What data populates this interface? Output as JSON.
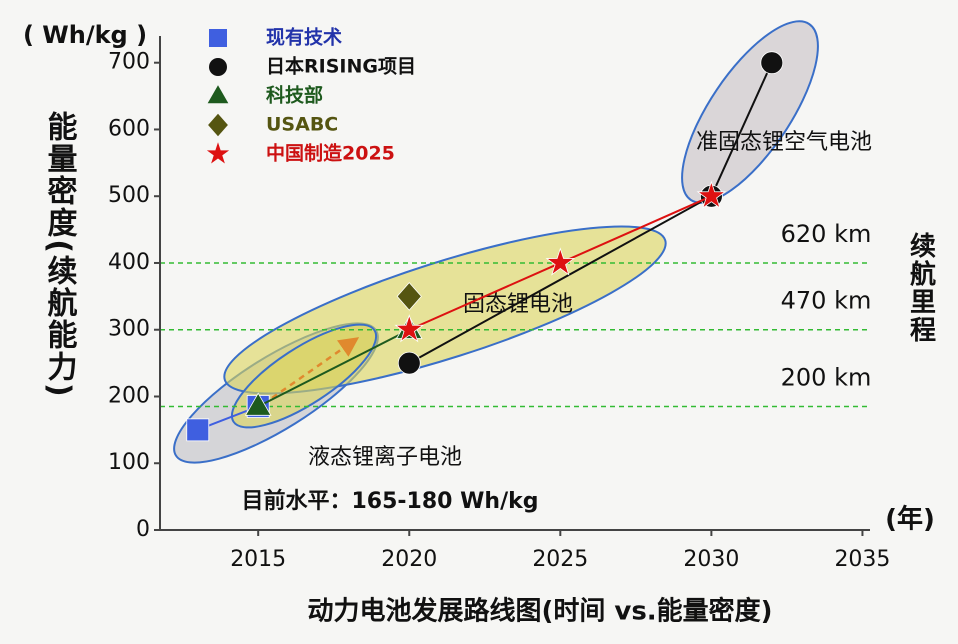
{
  "chart_data": {
    "type": "line",
    "title": "动力电池发展路线图(时间 vs.能量密度)",
    "y_label": "能量密度(续航能力)",
    "y_unit": "( Wh/kg )",
    "x_unit": "(年)",
    "y2_label": "续航里程",
    "xlim": [
      2011.75,
      2035.25
    ],
    "xticks": [
      2015,
      2020,
      2025,
      2030,
      2035
    ],
    "ylim": [
      0,
      740
    ],
    "yticks": [
      0,
      100,
      200,
      300,
      400,
      500,
      600,
      700
    ],
    "reference_lines": [
      {
        "value": 400,
        "label": "620 km"
      },
      {
        "value": 300,
        "label": "470 km"
      },
      {
        "value": 185,
        "label": "200 km"
      }
    ],
    "reference_color": "#33bb33",
    "annotations": [
      "液态锂离子电池",
      "固态锂电池",
      "准固态锂空气电池",
      "目前水平：165-180 Wh/kg"
    ],
    "series": [
      {
        "name": "现有技术",
        "color": "#3f5fe0",
        "text_color": "#2233aa",
        "marker": "square",
        "x": [
          2013,
          2015
        ],
        "values": [
          150,
          185
        ]
      },
      {
        "name": "日本RISING项目",
        "color": "#111111",
        "text_color": "#111111",
        "marker": "circle",
        "x": [
          2020,
          2030,
          2032
        ],
        "values": [
          250,
          500,
          700
        ]
      },
      {
        "name": "科技部",
        "color": "#1e5a1e",
        "text_color": "#1e5a1e",
        "marker": "triangle",
        "x": [
          2015,
          2020
        ],
        "values": [
          185,
          300
        ]
      },
      {
        "name": "USABC",
        "color": "#555511",
        "text_color": "#555511",
        "marker": "diamond",
        "x": [
          2020
        ],
        "values": [
          350
        ]
      },
      {
        "name": "中国制造2025",
        "color": "#dd1111",
        "text_color": "#cc1111",
        "marker": "star",
        "x": [
          2020,
          2025,
          2030
        ],
        "values": [
          300,
          400,
          500
        ]
      }
    ]
  }
}
